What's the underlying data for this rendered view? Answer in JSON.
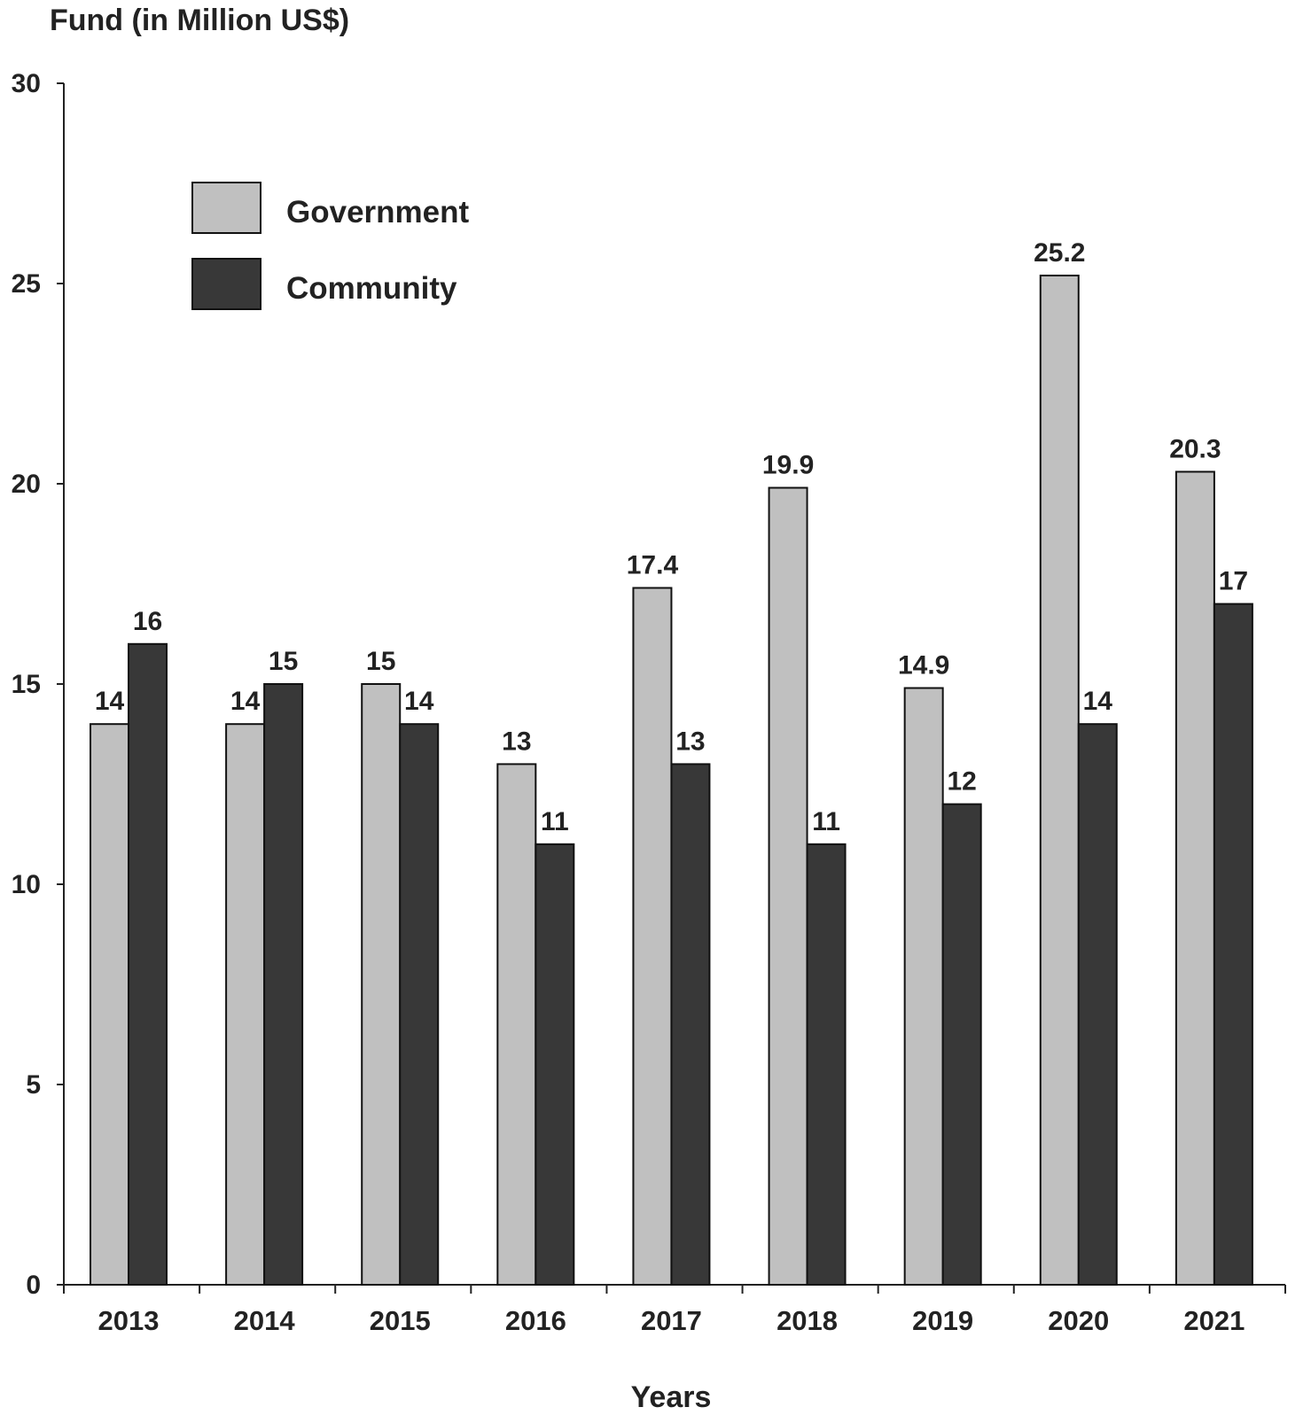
{
  "chart_data": {
    "type": "bar",
    "title": "",
    "ylabel": "Fund (in Million US$)",
    "xlabel": "Years",
    "ylim": [
      0,
      30
    ],
    "yticks": [
      0,
      5,
      10,
      15,
      20,
      25,
      30
    ],
    "categories": [
      "2013",
      "2014",
      "2015",
      "2016",
      "2017",
      "2018",
      "2019",
      "2020",
      "2021"
    ],
    "series": [
      {
        "name": "Government",
        "color": "#c0c0c0",
        "values": [
          14,
          14,
          15,
          13,
          17.4,
          19.9,
          14.9,
          25.2,
          20.3
        ]
      },
      {
        "name": "Community",
        "color": "#383838",
        "values": [
          16,
          15,
          14,
          11,
          13,
          11,
          12,
          14,
          17
        ]
      }
    ],
    "legend": "top-left",
    "grid": false
  }
}
